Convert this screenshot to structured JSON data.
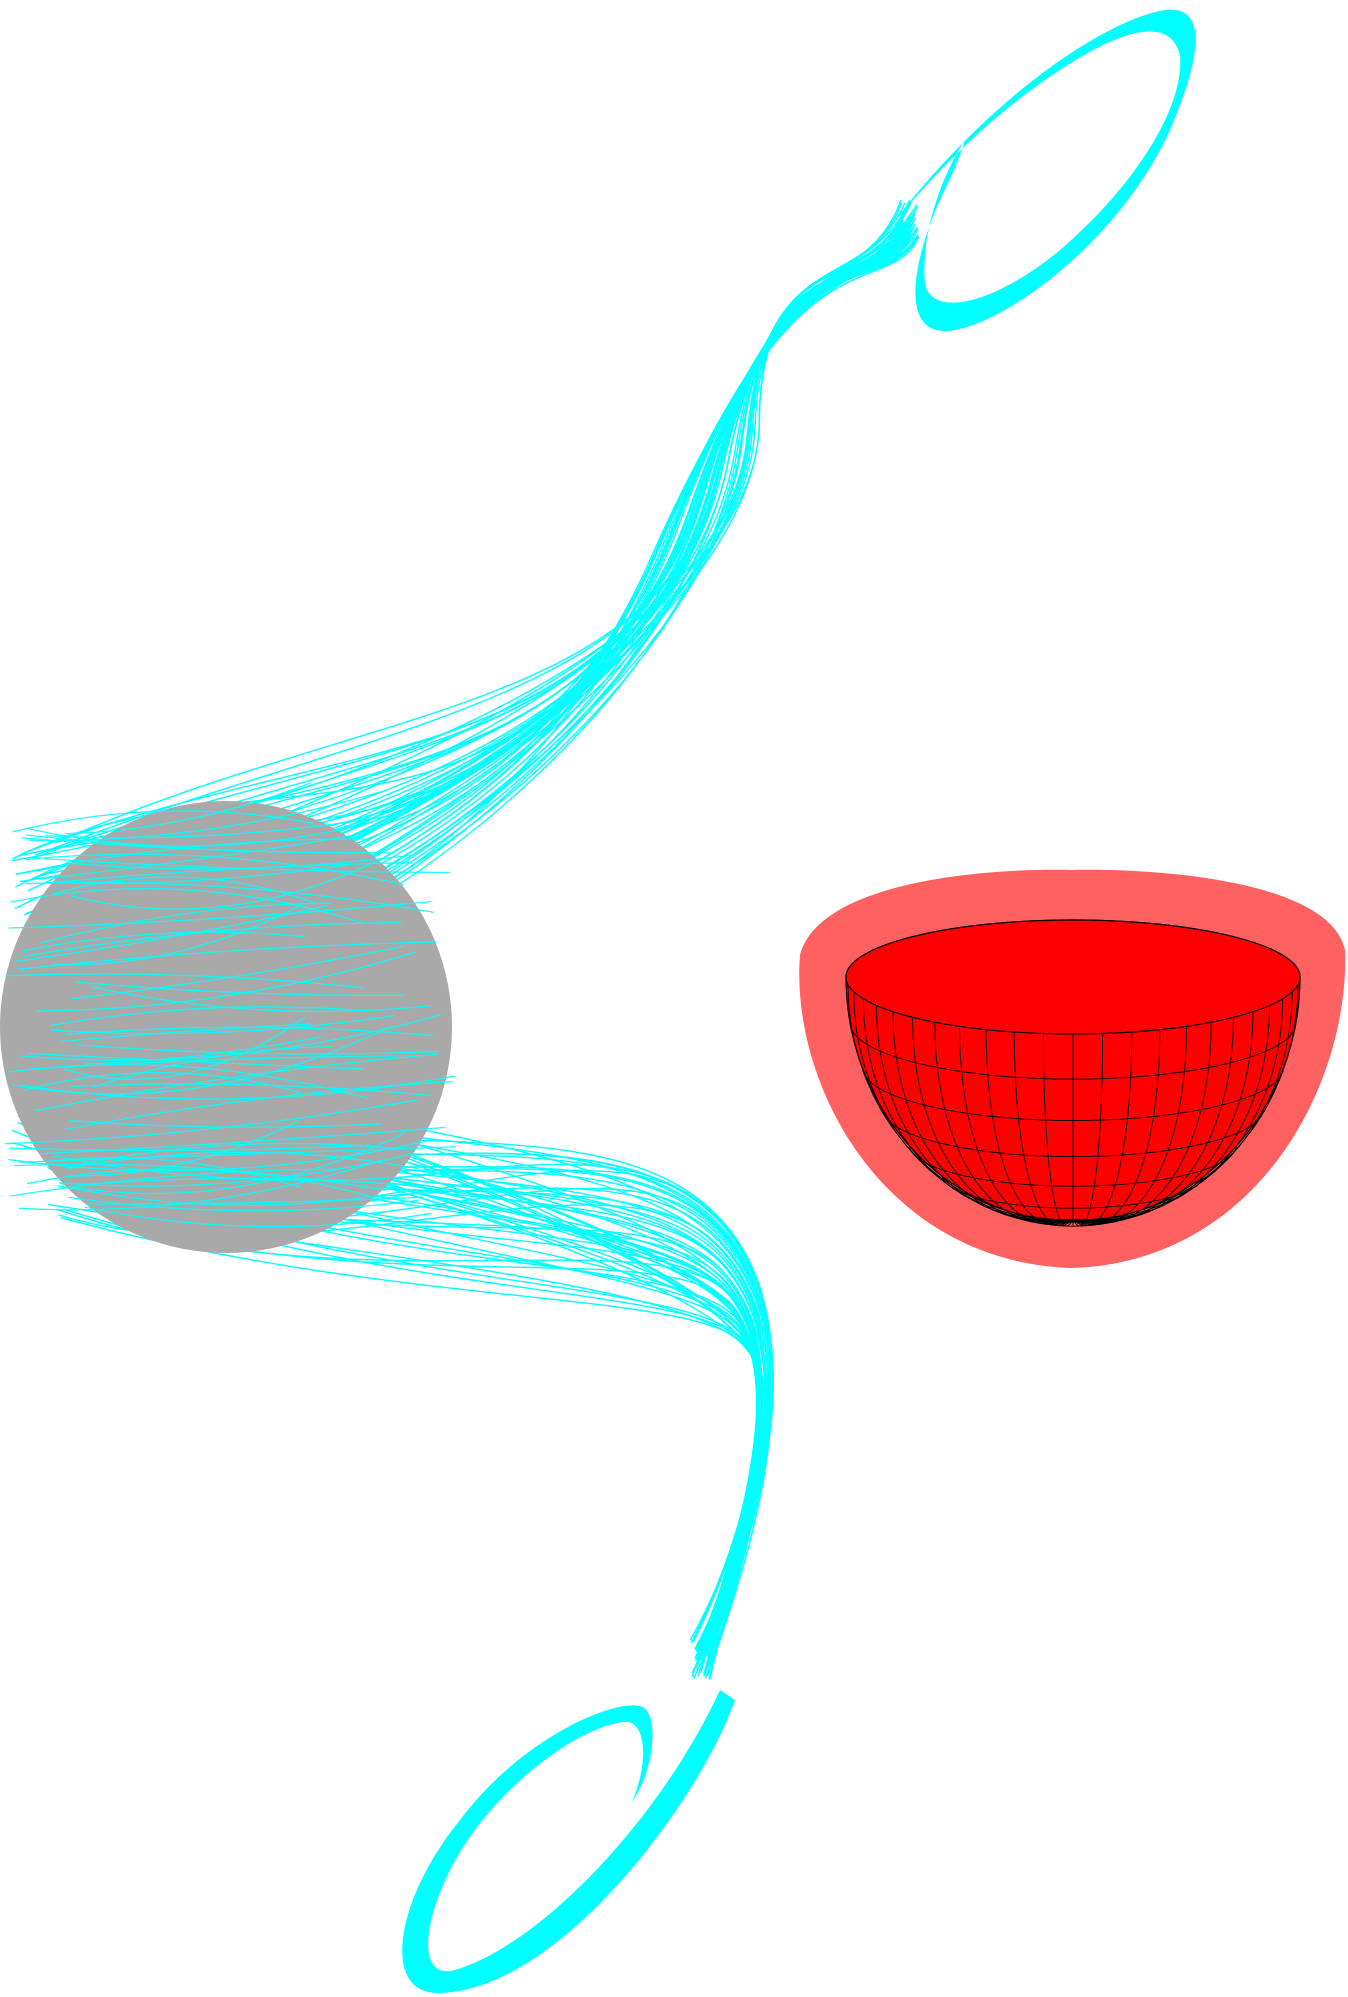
{
  "scene": {
    "background_color": "#ffffff",
    "particle_sphere": {
      "name": "gray-sphere",
      "color": "#a9a9a9"
    },
    "streamlines": {
      "name": "particle-streamlines",
      "color": "#00ffff",
      "count": 110
    },
    "bowl": {
      "name": "hemispherical-bowl",
      "inner_color": "#ff0000",
      "halo_color": "#ff6060",
      "grid_color": "#000000",
      "meridians": 24,
      "parallels": 7
    }
  }
}
